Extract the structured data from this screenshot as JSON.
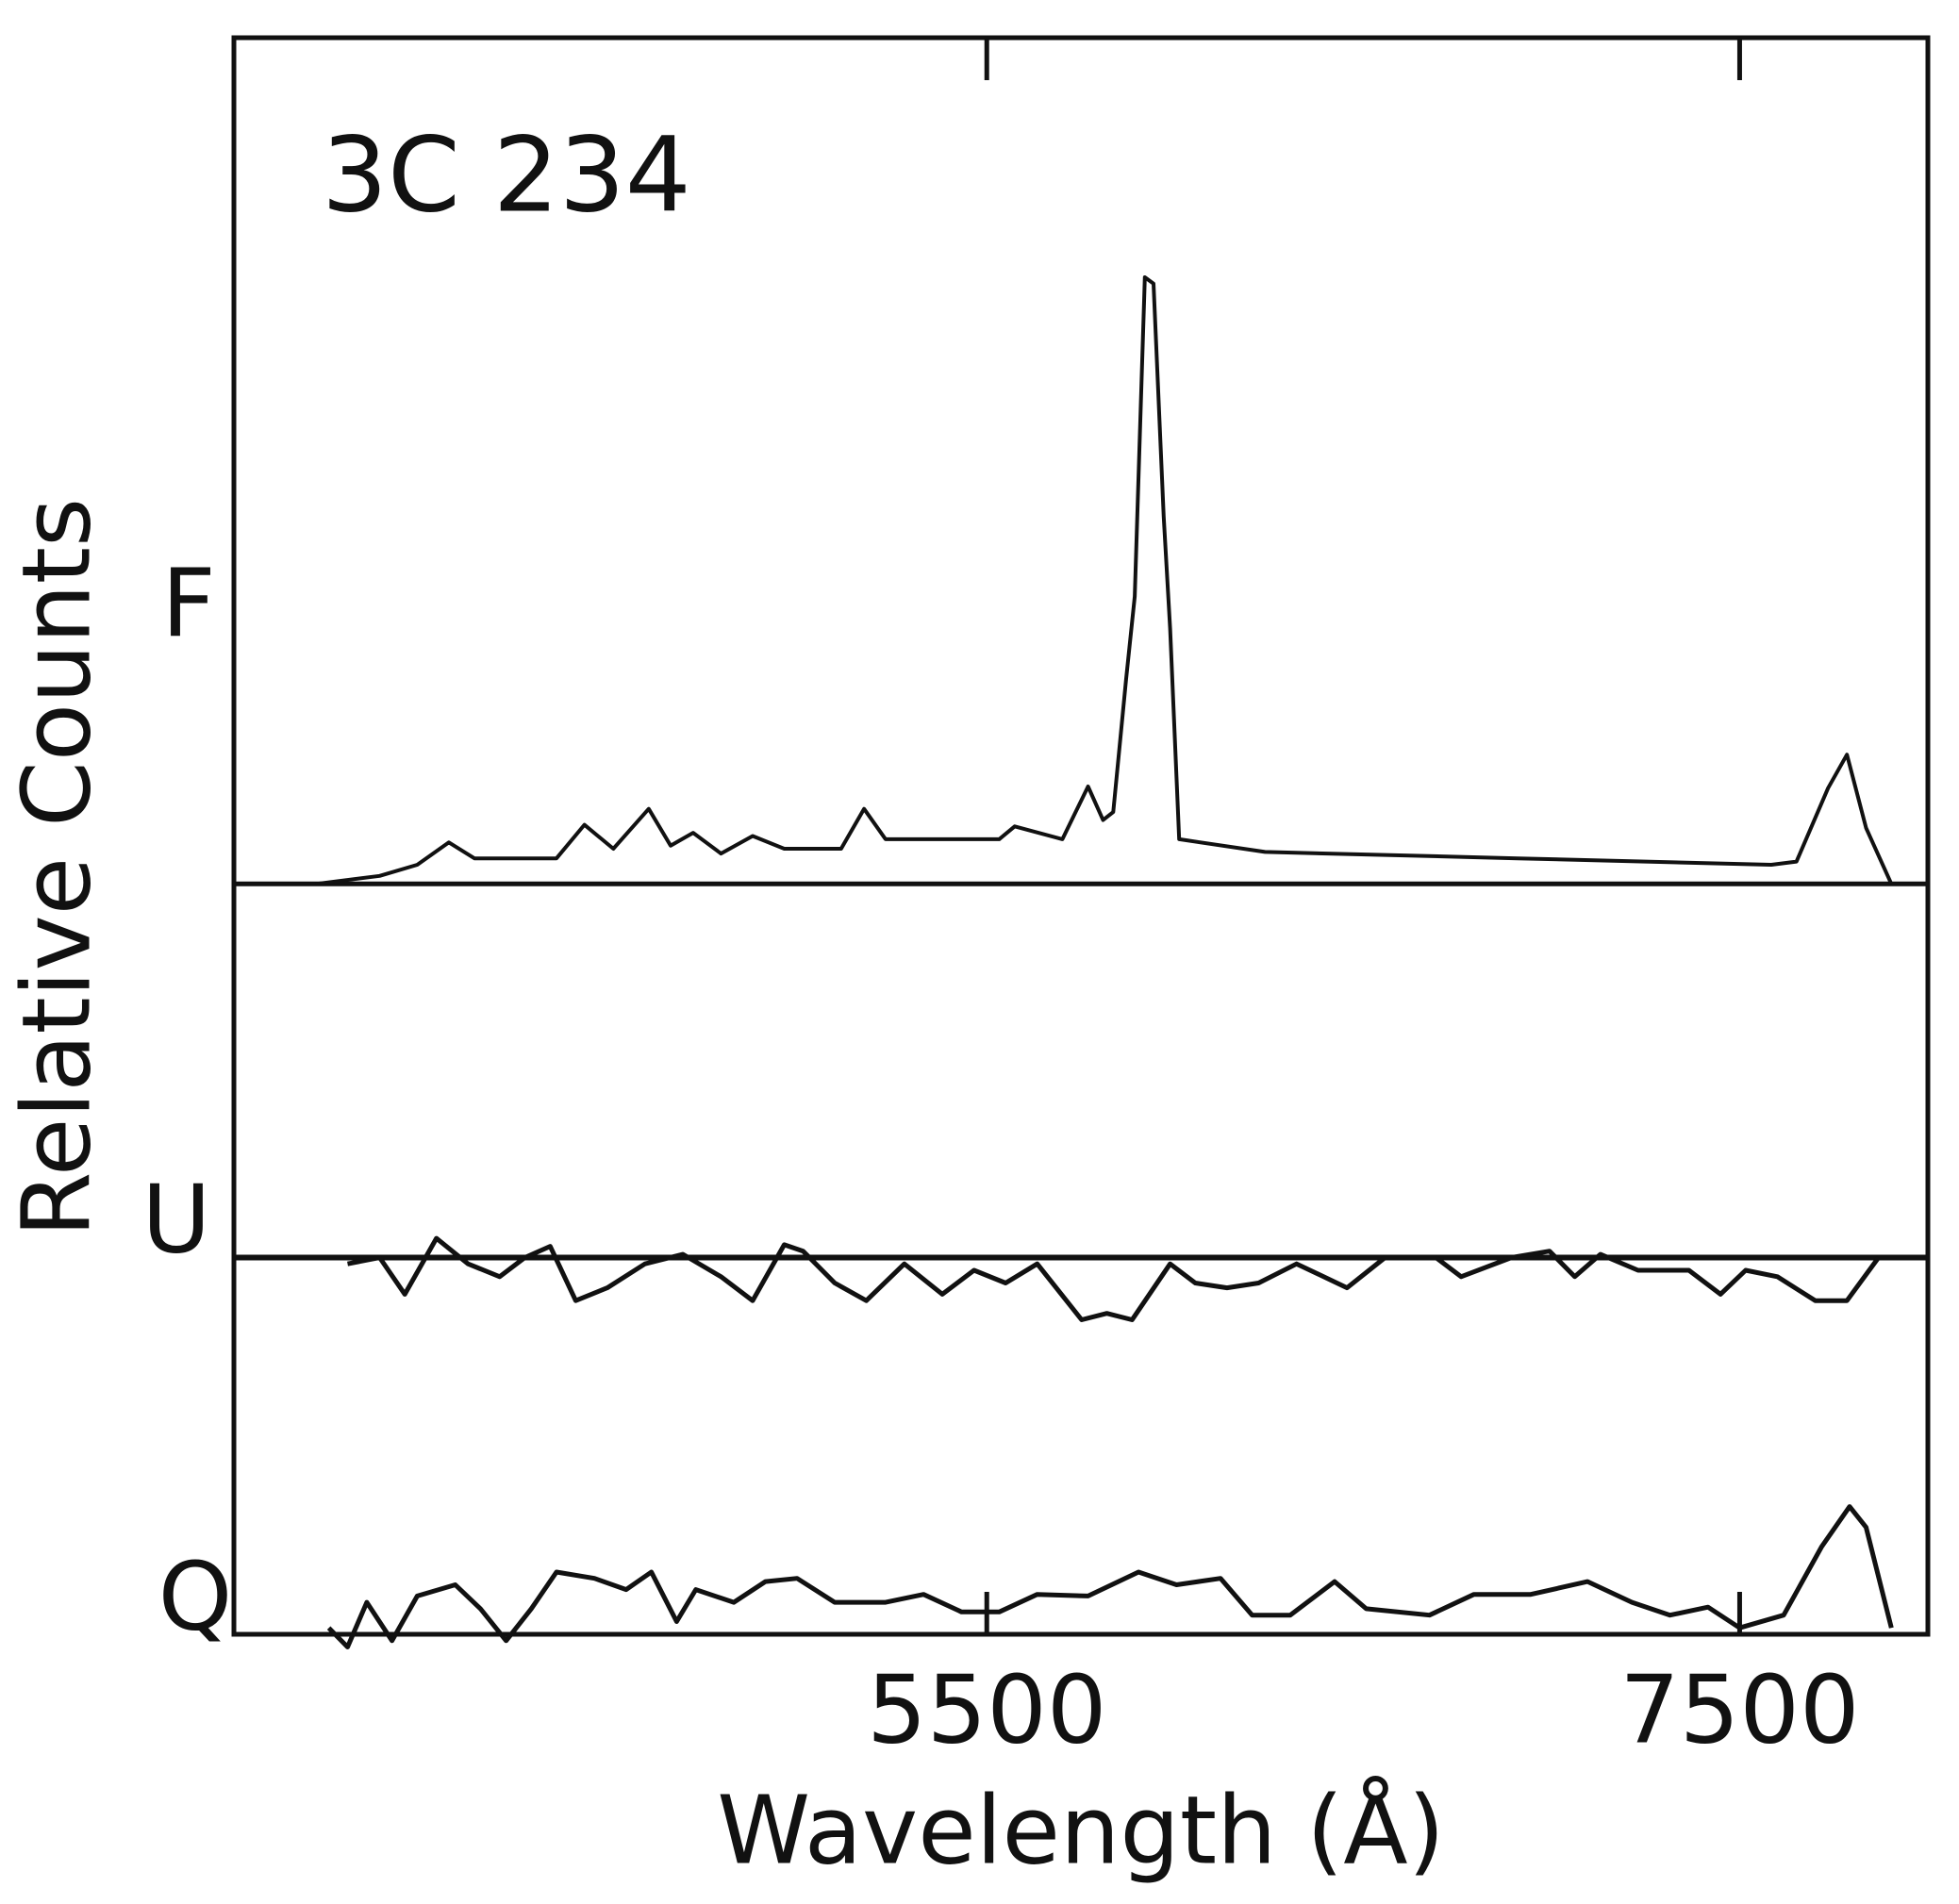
{
  "chart_data": {
    "type": "line",
    "title": "3C 234",
    "xlabel": "Wavelength (Å)",
    "ylabel": "Relative Counts",
    "xlim": [
      3500,
      8000
    ],
    "xticks": [
      5500,
      7500
    ],
    "ylim": [
      0,
      100
    ],
    "color": "#111111",
    "series": [
      {
        "name": "F",
        "baseline": 47,
        "x": [
          3718,
          3887,
          3987,
          4071,
          4139,
          4357,
          4431,
          4508,
          4602,
          4660,
          4720,
          4794,
          4878,
          4962,
          5113,
          5174,
          5231,
          5533,
          5574,
          5701,
          5769,
          5809,
          5836,
          5870,
          5893,
          5920,
          5943,
          5970,
          5987,
          6011,
          6239,
          6911,
          7584,
          7651,
          7735,
          7785,
          7836,
          7903
        ],
        "values": [
          47.0,
          47.5,
          48.2,
          49.6,
          48.6,
          48.6,
          50.7,
          49.2,
          51.7,
          49.4,
          50.2,
          48.9,
          50.0,
          49.2,
          49.2,
          51.7,
          49.8,
          49.8,
          50.6,
          49.8,
          53.1,
          51.0,
          51.5,
          59.8,
          65,
          85.0,
          84.6,
          70,
          63.0,
          49.8,
          49.0,
          48.6,
          48.2,
          48.4,
          53,
          55.1,
          50.5,
          47.0
        ]
      },
      {
        "name": "U",
        "baseline": 23.6,
        "x": [
          3802,
          3887,
          3954,
          4038,
          4122,
          4206,
          4273,
          4340,
          4408,
          4492,
          4592,
          4693,
          4794,
          4878,
          4962,
          5012,
          5096,
          5180,
          5281,
          5382,
          5466,
          5550,
          5634,
          5752,
          5819,
          5886,
          5987,
          6054,
          6138,
          6222,
          6323,
          6457,
          6558,
          6693,
          6760,
          6894,
          6995,
          7062,
          7130,
          7230,
          7365,
          7449,
          7516,
          7600,
          7701,
          7785,
          7869
        ],
        "values": [
          23.2,
          23.6,
          21.3,
          24.8,
          23.2,
          22.4,
          23.6,
          24.3,
          20.9,
          21.7,
          23.2,
          23.8,
          22.4,
          20.9,
          24.4,
          24.0,
          22.0,
          20.9,
          23.2,
          21.3,
          22.8,
          22.0,
          23.2,
          19.7,
          20.1,
          19.7,
          23.2,
          22.0,
          21.7,
          22.0,
          23.2,
          21.7,
          23.6,
          23.6,
          22.4,
          23.6,
          24.0,
          22.4,
          23.8,
          22.8,
          22.8,
          21.3,
          22.8,
          22.4,
          20.9,
          20.9,
          23.6
        ]
      },
      {
        "name": "Q",
        "baseline": 0,
        "x": [
          3752,
          3802,
          3853,
          3920,
          3987,
          4088,
          4155,
          4223,
          4290,
          4357,
          4458,
          4542,
          4609,
          4676,
          4727,
          4828,
          4912,
          4996,
          5096,
          5231,
          5332,
          5433,
          5533,
          5634,
          5769,
          5903,
          6004,
          6121,
          6205,
          6306,
          6424,
          6508,
          6676,
          6794,
          6945,
          7096,
          7214,
          7315,
          7416,
          7500,
          7617,
          7718,
          7792,
          7836,
          7903
        ],
        "values": [
          0.4,
          -0.8,
          2.0,
          -0.4,
          2.4,
          3.1,
          1.6,
          -0.4,
          1.6,
          3.9,
          3.5,
          2.8,
          3.9,
          0.8,
          2.8,
          2.0,
          3.3,
          3.5,
          2.0,
          2.0,
          2.5,
          1.4,
          1.4,
          2.5,
          2.4,
          3.9,
          3.1,
          3.5,
          1.2,
          1.2,
          3.3,
          1.6,
          1.2,
          2.5,
          2.5,
          3.3,
          2.0,
          1.2,
          1.7,
          0.4,
          1.2,
          5.5,
          8.0,
          6.7,
          0.4
        ]
      }
    ]
  }
}
